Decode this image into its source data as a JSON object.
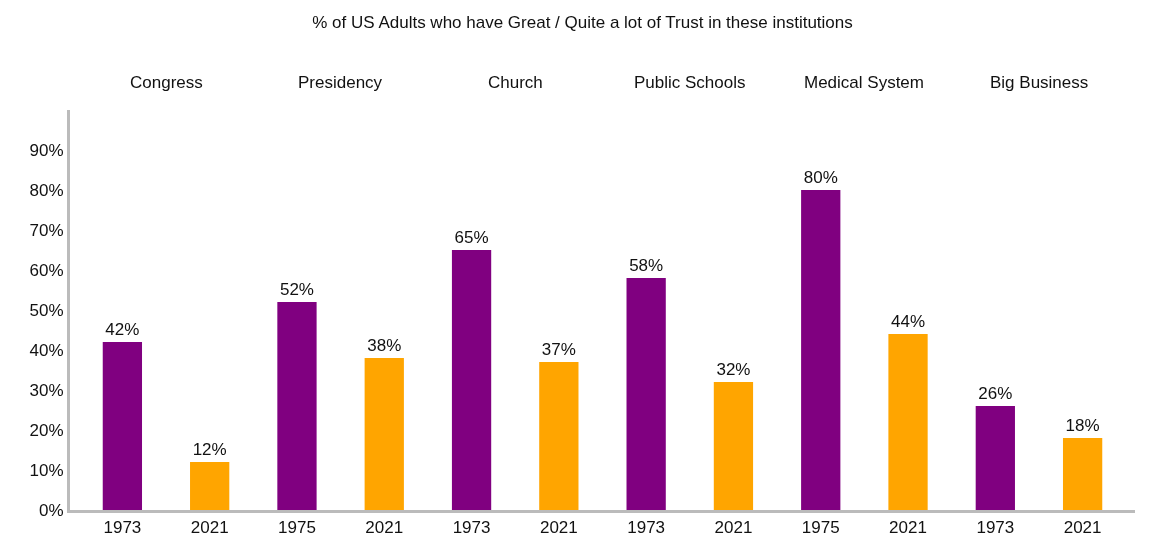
{
  "chart_data": {
    "type": "bar",
    "title": "% of US Adults who have Great / Quite a lot of Trust in these institutions",
    "categories": [
      "1973",
      "2021",
      "1975",
      "2021",
      "1973",
      "2021",
      "1973",
      "2021",
      "1975",
      "2021",
      "1973",
      "2021"
    ],
    "values": [
      42,
      12,
      52,
      38,
      65,
      37,
      58,
      32,
      80,
      44,
      26,
      18
    ],
    "value_labels": [
      "42%",
      "12%",
      "52%",
      "38%",
      "65%",
      "37%",
      "58%",
      "32%",
      "80%",
      "44%",
      "26%",
      "18%"
    ],
    "colors": [
      "#800080",
      "#ffa500",
      "#800080",
      "#ffa500",
      "#800080",
      "#ffa500",
      "#800080",
      "#ffa500",
      "#800080",
      "#ffa500",
      "#800080",
      "#ffa500"
    ],
    "annotations": [
      "Congress",
      "Presidency",
      "Church",
      "Public Schools",
      "Medical System",
      "Big Business"
    ],
    "ylim": [
      0,
      100
    ],
    "yticks": [
      {
        "value": 0,
        "label": "0%"
      },
      {
        "value": 10,
        "label": "10%"
      },
      {
        "value": 20,
        "label": "20%"
      },
      {
        "value": 30,
        "label": "30%"
      },
      {
        "value": 40,
        "label": "40%"
      },
      {
        "value": 50,
        "label": "50%"
      },
      {
        "value": 60,
        "label": "60%"
      },
      {
        "value": 70,
        "label": "70%"
      },
      {
        "value": 80,
        "label": "80%"
      },
      {
        "value": 90,
        "label": "90%"
      }
    ],
    "legend": false
  }
}
